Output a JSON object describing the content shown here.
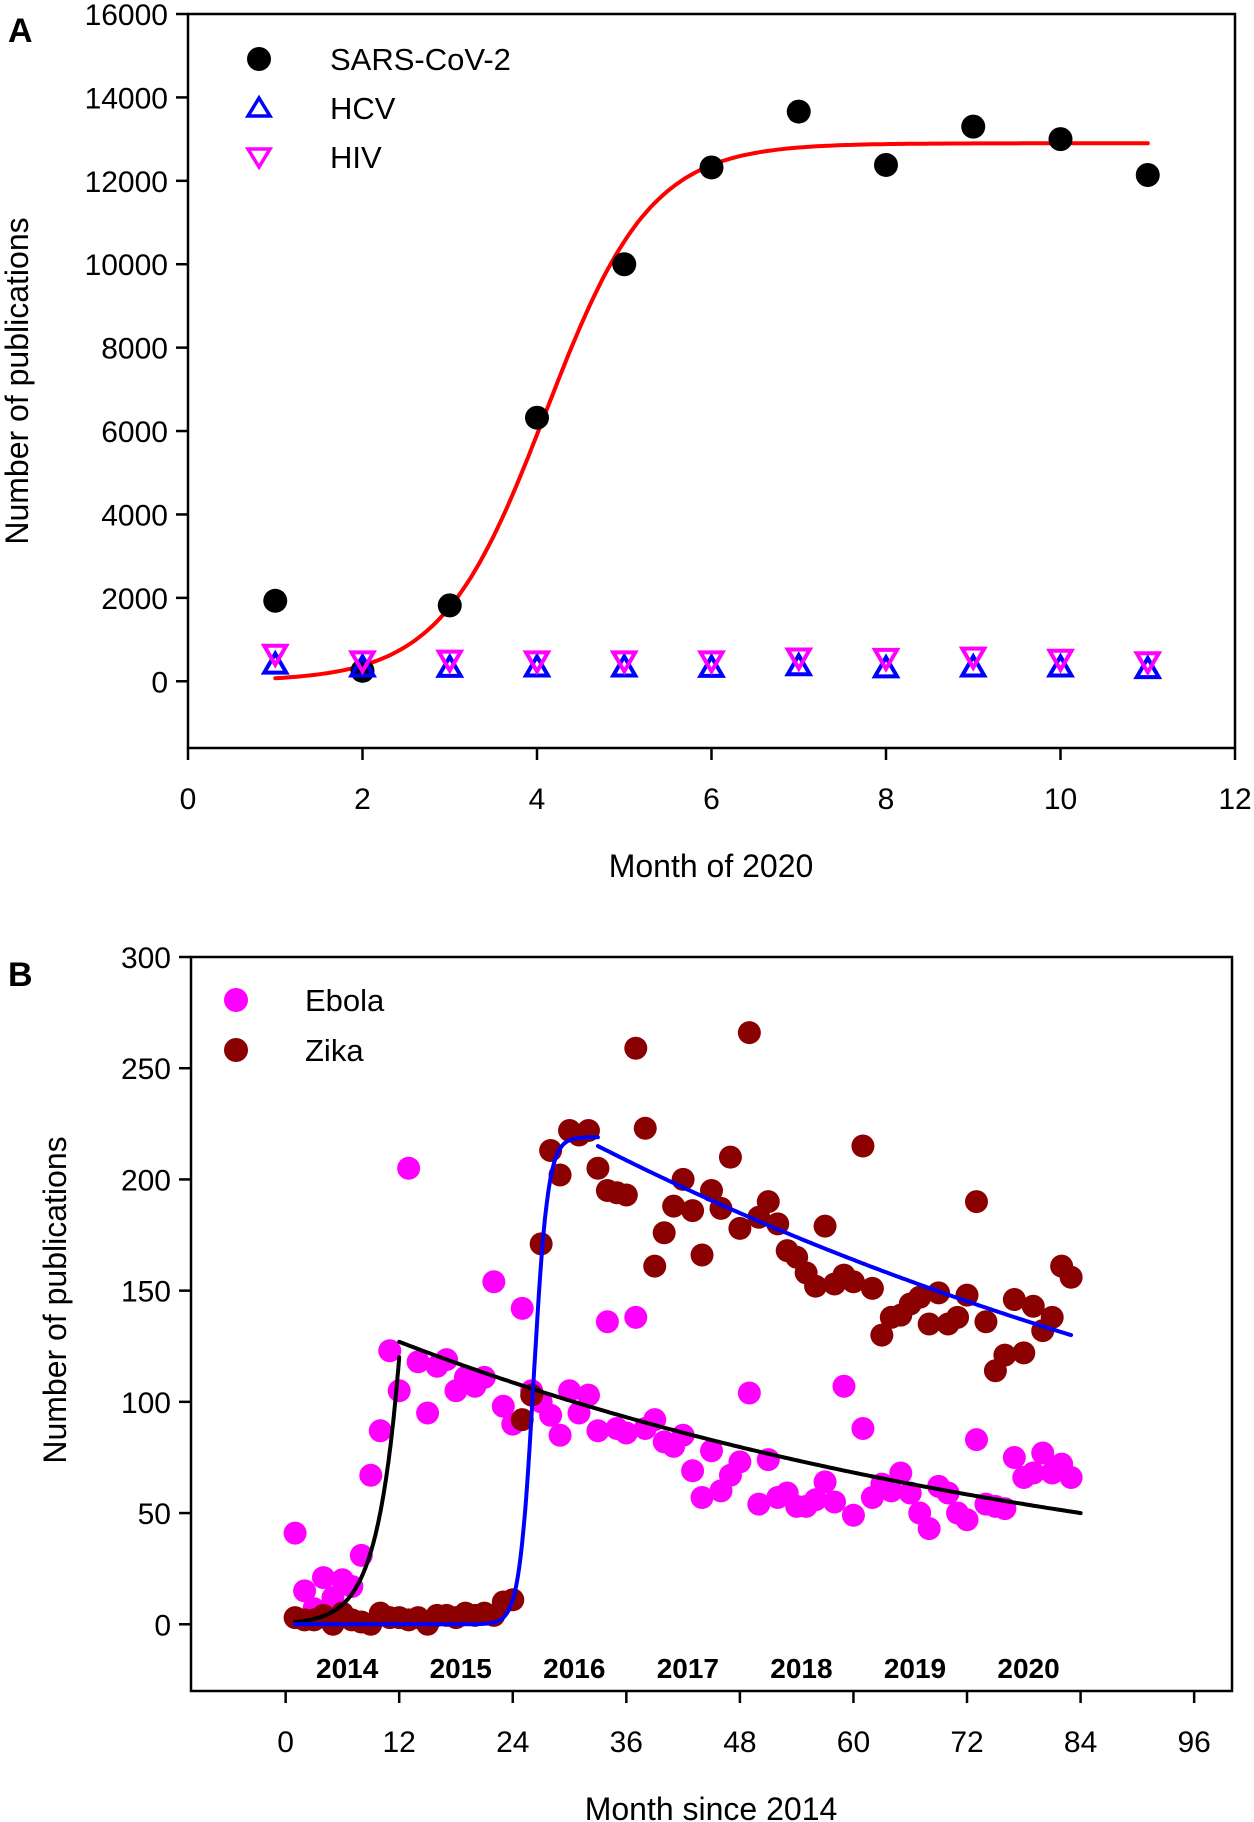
{
  "chart_data": [
    {
      "panel": "A",
      "type": "scatter",
      "xlabel": "Month of 2020",
      "ylabel": "Number of publications",
      "xlim": [
        0,
        12
      ],
      "ylim": [
        -1600,
        16000
      ],
      "xticks": [
        "0",
        "2",
        "4",
        "6",
        "8",
        "10",
        "12"
      ],
      "yticks": [
        "0",
        "2000",
        "4000",
        "6000",
        "8000",
        "10000",
        "12000",
        "14000",
        "16000"
      ],
      "legend_position": "top-left",
      "grid": false,
      "x": [
        1,
        2,
        3,
        4,
        5,
        6,
        7,
        8,
        9,
        10,
        11
      ],
      "series": [
        {
          "name": "SARS-CoV-2",
          "marker": "filled-circle",
          "color": "#000000",
          "values": [
            1930,
            250,
            1820,
            6320,
            10000,
            12320,
            13660,
            12380,
            13300,
            13000,
            12140
          ]
        },
        {
          "name": "HCV",
          "marker": "open-triangle-up",
          "color": "#0000FF",
          "values": [
            400,
            330,
            320,
            330,
            330,
            320,
            360,
            310,
            330,
            330,
            290
          ]
        },
        {
          "name": "HIV",
          "marker": "open-triangle-down",
          "color": "#FF00FF",
          "values": [
            660,
            500,
            520,
            500,
            500,
            500,
            570,
            560,
            590,
            540,
            480
          ]
        }
      ],
      "fits": [
        {
          "name": "SARS-CoV-2 sigmoid fit",
          "color": "#FF0000",
          "model": "sigmoid",
          "max": 12900,
          "x0": 4.1,
          "scale": 0.6,
          "x_range": [
            1,
            11
          ]
        }
      ]
    },
    {
      "panel": "B",
      "type": "scatter",
      "xlabel": "Month since 2014",
      "ylabel": "Number of publications",
      "xlim": [
        -10,
        100
      ],
      "ylim": [
        -30,
        300
      ],
      "xticks": [
        "0",
        "12",
        "24",
        "36",
        "48",
        "60",
        "72",
        "84",
        "96"
      ],
      "yticks": [
        "0",
        "50",
        "100",
        "150",
        "200",
        "250",
        "300"
      ],
      "year_labels": [
        "2014",
        "2015",
        "2016",
        "2017",
        "2018",
        "2019",
        "2020"
      ],
      "legend_position": "top-left",
      "grid": false,
      "series": [
        {
          "name": "Ebola",
          "marker": "filled-circle",
          "color": "#FF00FF",
          "x_start": 1,
          "values": [
            41,
            15,
            7,
            21,
            12,
            20,
            17,
            31,
            67,
            87,
            123,
            105,
            205,
            118,
            95,
            116,
            119,
            105,
            111,
            107,
            111,
            154,
            98,
            90,
            142,
            105,
            100,
            94,
            85,
            105,
            95,
            103,
            87,
            136,
            88,
            86,
            138,
            88,
            92,
            82,
            80,
            85,
            69,
            57,
            78,
            60,
            67,
            73,
            104,
            54,
            74,
            57,
            59,
            53,
            53,
            56,
            64,
            55,
            107,
            49,
            88,
            57,
            63,
            60,
            68,
            59,
            50,
            43,
            62,
            59,
            50,
            47,
            83,
            54,
            53,
            52,
            75,
            66,
            68,
            77,
            68,
            72,
            66
          ]
        },
        {
          "name": "Zika",
          "marker": "filled-circle",
          "color": "#8B0000",
          "x_start": 1,
          "values": [
            3,
            2,
            2,
            4,
            0,
            5,
            2,
            1,
            0,
            5,
            3,
            3,
            2,
            3,
            0,
            4,
            4,
            3,
            5,
            4,
            5,
            4,
            10,
            11,
            92,
            103,
            171,
            213,
            202,
            222,
            220,
            222,
            205,
            195,
            194,
            193,
            259,
            223,
            161,
            176,
            188,
            200,
            186,
            166,
            195,
            187,
            210,
            178,
            266,
            183,
            190,
            180,
            168,
            165,
            158,
            152,
            179,
            153,
            157,
            154,
            215,
            151,
            130,
            138,
            139,
            144,
            147,
            135,
            149,
            135,
            138,
            148,
            190,
            136,
            114,
            121,
            146,
            122,
            143,
            132,
            138,
            161,
            156
          ]
        }
      ],
      "fits": [
        {
          "name": "Ebola growth fit",
          "color": "#000000",
          "model": "exponential",
          "x_range": [
            1,
            12
          ],
          "y_start": 1,
          "y_end": 120
        },
        {
          "name": "Ebola decay fit",
          "color": "#000000",
          "model": "exponential",
          "x_range": [
            12,
            84
          ],
          "y_start": 127,
          "y_end": 50
        },
        {
          "name": "Zika growth fit",
          "color": "#0000FF",
          "model": "sigmoid",
          "max": 219,
          "x0": 26.2,
          "scale": 0.75,
          "x_range": [
            1,
            33
          ]
        },
        {
          "name": "Zika decay fit",
          "color": "#0000FF",
          "model": "exponential",
          "x_range": [
            33,
            83
          ],
          "y_start": 215,
          "y_end": 130
        }
      ]
    }
  ]
}
